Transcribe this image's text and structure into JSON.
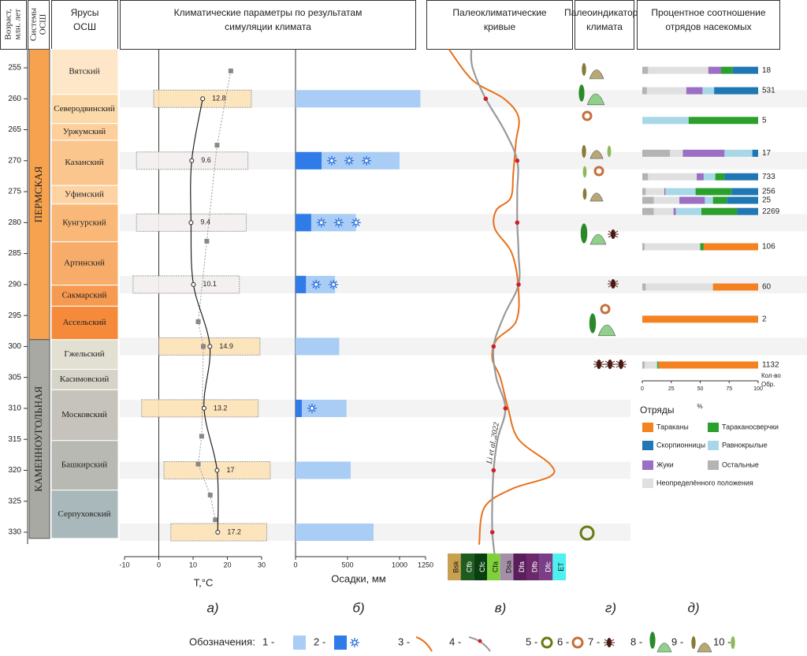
{
  "headers": {
    "age": [
      "Возраст,",
      "млн. лет"
    ],
    "systems": [
      "Системы",
      "ОСШ"
    ],
    "stages": [
      "Ярусы",
      "ОСШ"
    ],
    "climate": [
      "Климатические параметры по результатам",
      "симуляции климата"
    ],
    "curves": [
      "Палеоклиматические",
      "кривые"
    ],
    "indicators": [
      "Палеоиндикаторы",
      "климата"
    ],
    "insects": [
      "Процентное соотношение",
      "отрядов насекомых"
    ]
  },
  "age_axis": {
    "ylim": [
      255,
      330
    ],
    "yticks": [
      255,
      260,
      265,
      270,
      275,
      280,
      285,
      290,
      295,
      300,
      305,
      310,
      315,
      320,
      325,
      330
    ]
  },
  "systems": [
    {
      "name": "ПЕРМСКАЯ",
      "age_top": 252,
      "age_bottom": 298.9,
      "color": "#f7a24e"
    },
    {
      "name": "КАМЕННОУГОЛЬНАЯ",
      "age_top": 298.9,
      "age_bottom": 331,
      "color": "#a9a9a4"
    }
  ],
  "stages": [
    {
      "name": "Вятский",
      "age_top": 252,
      "age_bottom": 259.3,
      "color": "#fde7c8"
    },
    {
      "name": "Северодвинский",
      "age_top": 259.3,
      "age_bottom": 264,
      "color": "#fbd9a8"
    },
    {
      "name": "Уржумский",
      "age_top": 264,
      "age_bottom": 266.7,
      "color": "#fccf9d"
    },
    {
      "name": "Казанский",
      "age_top": 266.7,
      "age_bottom": 274,
      "color": "#fbc68e"
    },
    {
      "name": "Уфимский",
      "age_top": 274,
      "age_bottom": 277,
      "color": "#fdd3a4"
    },
    {
      "name": "Кунгурский",
      "age_top": 277,
      "age_bottom": 283.1,
      "color": "#f9b877"
    },
    {
      "name": "Артинский",
      "age_top": 283.1,
      "age_bottom": 290.1,
      "color": "#f8ac6a"
    },
    {
      "name": "Сакмарский",
      "age_top": 290.1,
      "age_bottom": 293.5,
      "color": "#f69a52"
    },
    {
      "name": "Ассельский",
      "age_top": 293.5,
      "age_bottom": 298.9,
      "color": "#f48a3a"
    },
    {
      "name": "Гжельский",
      "age_top": 298.9,
      "age_bottom": 303.7,
      "color": "#e2e0d3"
    },
    {
      "name": "Касимовский",
      "age_top": 303.7,
      "age_bottom": 307,
      "color": "#d6d4c8"
    },
    {
      "name": "Московский",
      "age_top": 307,
      "age_bottom": 315.2,
      "color": "#c5c3bb"
    },
    {
      "name": "Башкирский",
      "age_top": 315.2,
      "age_bottom": 323.2,
      "color": "#b8b9b3"
    },
    {
      "name": "Серпуховский",
      "age_top": 323.2,
      "age_bottom": 331,
      "color": "#a9b8ba"
    }
  ],
  "temperature": {
    "xlim": [
      -10,
      30
    ],
    "xticks": [
      -10,
      0,
      10,
      20,
      30
    ],
    "xlabel": "T,°C",
    "ages": [
      260,
      270,
      280,
      290,
      300,
      310,
      320,
      330
    ],
    "values": [
      12.8,
      9.6,
      9.4,
      10.1,
      14.9,
      13.2,
      17,
      17.2
    ],
    "ranges": [
      [
        -1.5,
        27
      ],
      [
        -6.5,
        26
      ],
      [
        -6.5,
        25.5
      ],
      [
        -7.5,
        23.5
      ],
      [
        0,
        29.5
      ],
      [
        -5,
        29
      ],
      [
        1.5,
        32.5
      ],
      [
        3.5,
        31.5
      ]
    ],
    "dashed": {
      "ages": [
        255.5,
        267.5,
        283,
        296,
        300,
        314.5,
        319,
        324,
        328
      ],
      "values": [
        21,
        17,
        14,
        11.5,
        13,
        12.5,
        11.5,
        15,
        16.5
      ]
    }
  },
  "precipitation": {
    "xlim": [
      0,
      1250
    ],
    "xticks": [
      0,
      500,
      1000,
      1250
    ],
    "xlabel": "Осадки, мм",
    "ages": [
      260,
      270,
      280,
      290,
      300,
      310,
      320,
      330
    ],
    "values": [
      1200,
      1000,
      580,
      380,
      420,
      490,
      530,
      750
    ],
    "snow_values": [
      null,
      250,
      150,
      100,
      null,
      60,
      null,
      null
    ],
    "snowflakes": [
      0,
      3,
      3,
      2,
      0,
      1,
      0,
      0
    ]
  },
  "curves": {
    "xlim": [
      0,
      9
    ],
    "gray": {
      "ages": [
        252,
        255,
        260,
        265,
        270,
        275,
        280,
        285,
        290,
        295,
        300,
        305,
        310,
        315,
        320,
        325,
        330,
        334
      ],
      "values": [
        1.8,
        1.9,
        2.9,
        4.3,
        5.3,
        5.3,
        5.3,
        5.4,
        5.4,
        4.3,
        3.5,
        3.7,
        4.4,
        3.8,
        3.5,
        3.4,
        3.4,
        3.6
      ]
    },
    "orange": {
      "ages": [
        252,
        257,
        260,
        263,
        267,
        272,
        276,
        278,
        281,
        285,
        291,
        296,
        299,
        302,
        305,
        310,
        315,
        319,
        321,
        323,
        326,
        332
      ],
      "values": [
        0.1,
        1.9,
        4.3,
        5.4,
        5.2,
        5.0,
        4.8,
        3.7,
        3.6,
        4.9,
        5.4,
        5.2,
        3.7,
        3.4,
        4.0,
        4.6,
        5.4,
        7.8,
        7.8,
        4.9,
        2.8,
        2.4
      ]
    },
    "citation": "Li et al.,2022"
  },
  "koppen": {
    "classes": [
      "Bsk",
      "Cfb",
      "Cfc",
      "Cfa",
      "Dsa",
      "Dfa",
      "Dfb",
      "Dfc",
      "ET"
    ],
    "colors": [
      "#c8a050",
      "#1f5c1f",
      "#0a4010",
      "#7fd13b",
      "#a58fa8",
      "#5a1f5a",
      "#6c2a6c",
      "#7b3f8a",
      "#4ff0f0"
    ]
  },
  "insects": {
    "xlim": [
      0,
      100
    ],
    "xticks": [
      0,
      25,
      50,
      75,
      100
    ],
    "xlabel": "%",
    "count_label": [
      "Кол-во",
      "Обр."
    ],
    "legend_title": "Отряды",
    "ages": [
      255.4,
      258.7,
      263.5,
      268.8,
      272.6,
      275,
      276.4,
      278.2,
      283.9,
      290.4,
      295.6,
      303
    ],
    "counts": [
      18,
      531,
      5,
      17,
      733,
      256,
      25,
      2269,
      106,
      60,
      2,
      1132
    ],
    "series": [
      {
        "name": "Остальные",
        "color": "#b4b4b4",
        "values": [
          5,
          4,
          0,
          24,
          5,
          3,
          10,
          10,
          2,
          3,
          0,
          2
        ]
      },
      {
        "name": "Неопределённого положения",
        "color": "#e0e0e0",
        "values": [
          52,
          34,
          0,
          11,
          42,
          16,
          22,
          17,
          48,
          58,
          0,
          10
        ]
      },
      {
        "name": "Жуки",
        "color": "#9b6fc4",
        "values": [
          11,
          14,
          0,
          36,
          6,
          1,
          22,
          2,
          0,
          0,
          0,
          0
        ]
      },
      {
        "name": "Равнокрылые",
        "color": "#a8d8e8",
        "values": [
          0,
          10,
          40,
          24,
          10,
          26,
          7,
          22,
          0,
          0,
          0,
          1
        ]
      },
      {
        "name": "Тараканосверчки",
        "color": "#2ca02c",
        "values": [
          10,
          0,
          60,
          0,
          8,
          31,
          12,
          31,
          3,
          0,
          0,
          1
        ]
      },
      {
        "name": "Скорпионницы",
        "color": "#1f77b4",
        "values": [
          22,
          38,
          0,
          5,
          29,
          23,
          27,
          18,
          0,
          0,
          0,
          0
        ]
      },
      {
        "name": "Тараканы",
        "color": "#f58220",
        "values": [
          0,
          0,
          0,
          0,
          0,
          0,
          0,
          0,
          47,
          39,
          100,
          86
        ]
      }
    ]
  },
  "panel_labels": [
    "а)",
    "б)",
    "в)",
    "г)",
    "д)"
  ],
  "legend": {
    "title": "Обозначения:",
    "items": [
      "1 -",
      "2 -",
      "3 -",
      "4 -",
      "5 -",
      "6 -",
      "7 -",
      "8 -",
      "9 -",
      "10 -"
    ]
  }
}
